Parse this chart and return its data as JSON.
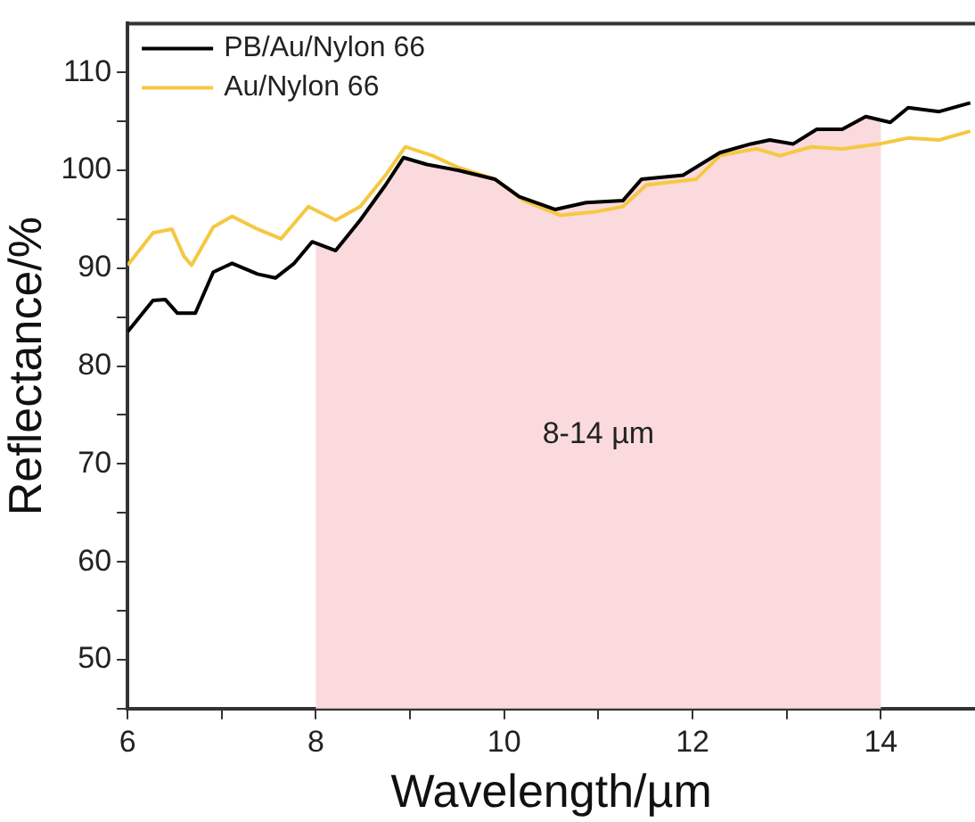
{
  "chart_data": {
    "type": "line",
    "xlabel": "Wavelength/µm",
    "ylabel": "Reflectance/%",
    "xlim": [
      6,
      15
    ],
    "xticks": [
      6,
      {
        "value": 7,
        "label": null
      },
      8,
      {
        "value": 9,
        "label": null
      },
      10,
      {
        "value": 11,
        "label": null
      },
      12,
      {
        "value": 13,
        "label": null
      },
      14
    ],
    "ylim": [
      45,
      115
    ],
    "yticks": [
      {
        "value": 45,
        "label": null
      },
      50,
      {
        "value": 55,
        "label": null
      },
      60,
      {
        "value": 65,
        "label": null
      },
      70,
      {
        "value": 75,
        "label": null
      },
      80,
      {
        "value": 85,
        "label": null
      },
      90,
      {
        "value": 95,
        "label": null
      },
      100,
      {
        "value": 105,
        "label": null
      },
      110
    ],
    "grid": false,
    "legend": "top left",
    "marker": "none",
    "line_style": "solid",
    "bands": [
      {
        "axis": "x",
        "from": 8,
        "to": 14,
        "label": "8-14 µm",
        "color": "#fadadd"
      }
    ],
    "series": [
      {
        "name": "PB/Au/Nylon 66",
        "color": "#000000",
        "x": [
          6.0,
          6.27,
          6.4,
          6.53,
          6.72,
          6.91,
          7.11,
          7.38,
          7.57,
          7.77,
          7.96,
          8.21,
          8.47,
          8.74,
          8.93,
          9.18,
          9.51,
          9.9,
          10.16,
          10.54,
          10.87,
          11.26,
          11.46,
          11.9,
          12.29,
          12.62,
          12.82,
          13.07,
          13.32,
          13.59,
          13.84,
          14.1,
          14.29,
          14.62,
          14.95
        ],
        "values": [
          83.5,
          86.7,
          86.8,
          85.4,
          85.4,
          89.6,
          90.5,
          89.4,
          89.0,
          90.5,
          92.7,
          91.8,
          94.9,
          98.5,
          101.3,
          100.6,
          100.0,
          99.1,
          97.3,
          96.0,
          96.7,
          96.9,
          99.1,
          99.5,
          101.8,
          102.7,
          103.1,
          102.7,
          104.2,
          104.2,
          105.5,
          104.9,
          106.4,
          106.0,
          106.9
        ]
      },
      {
        "name": "Au/Nylon 66",
        "color": "#f5c842",
        "x": [
          6.0,
          6.27,
          6.47,
          6.6,
          6.68,
          6.91,
          7.11,
          7.38,
          7.63,
          7.92,
          8.21,
          8.47,
          8.74,
          8.95,
          9.24,
          9.51,
          9.9,
          10.21,
          10.6,
          10.99,
          11.26,
          11.51,
          12.04,
          12.29,
          12.68,
          12.93,
          13.26,
          13.59,
          13.98,
          14.29,
          14.62,
          14.95
        ],
        "values": [
          90.3,
          93.6,
          94.0,
          91.2,
          90.3,
          94.2,
          95.3,
          94.0,
          93.0,
          96.3,
          94.9,
          96.3,
          99.5,
          102.4,
          101.5,
          100.3,
          99.1,
          96.9,
          95.4,
          95.8,
          96.3,
          98.5,
          99.1,
          101.5,
          102.2,
          101.5,
          102.4,
          102.2,
          102.7,
          103.3,
          103.1,
          104.0
        ]
      }
    ]
  }
}
